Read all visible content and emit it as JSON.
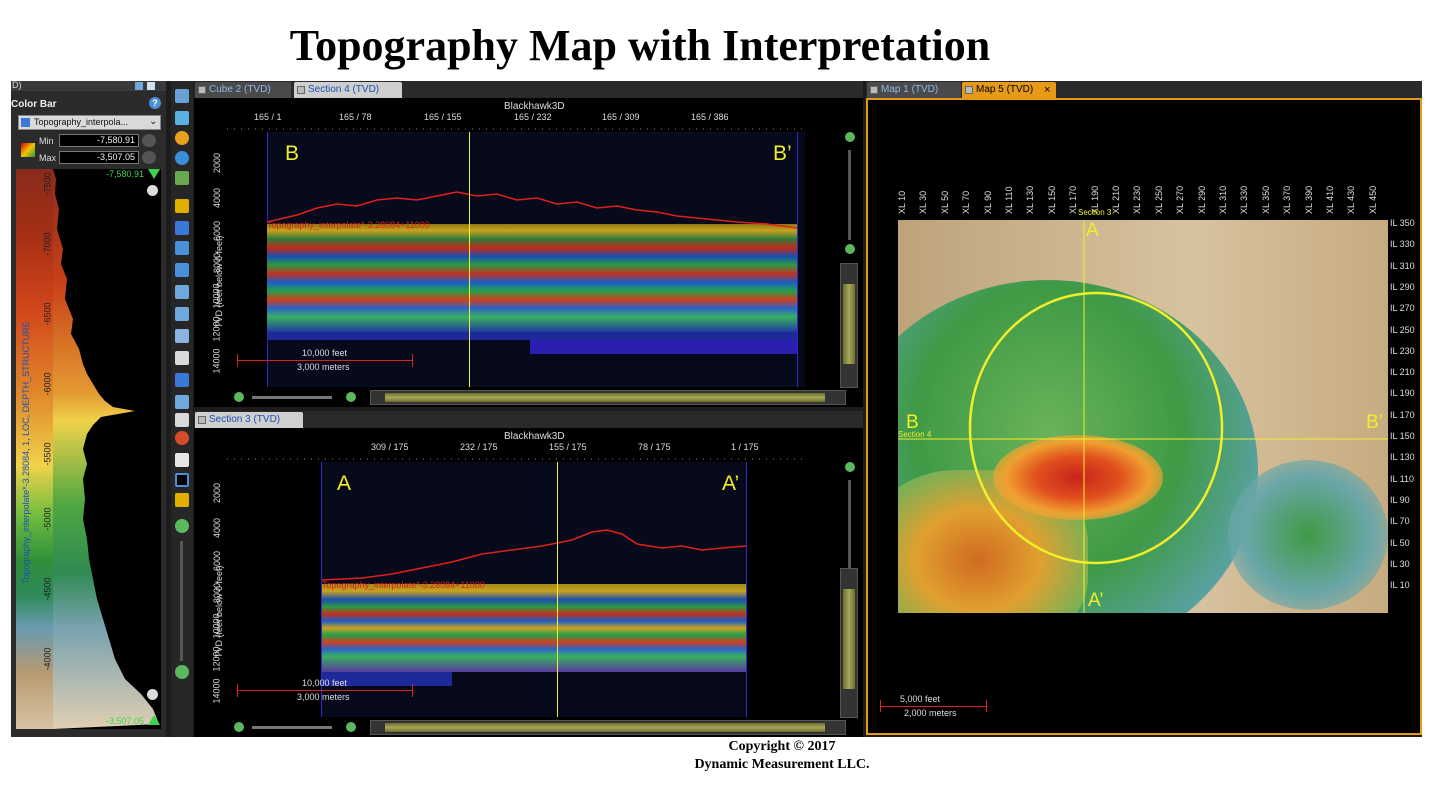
{
  "title": "Topography Map with Interpretation",
  "copyright": {
    "line1": "Copyright  © 2017",
    "line2": "Dynamic Measurement LLC."
  },
  "left_panel": {
    "header_fragment": "D)",
    "title": "Color Bar",
    "help_icon": "help-icon",
    "attribute_select": "Topography_interpola...",
    "min_label": "Min",
    "min_value": "-7,580.91",
    "max_label": "Max",
    "max_value": "-3,507.05",
    "top_value": "-7,580.91",
    "bottom_value": "-3,507.05",
    "axis_title": "Topography_interpolate*-3.28084, 1, LOC, DEPTH_STRUCTURE",
    "ticks": [
      "-7500",
      "-7000",
      "-6500",
      "-6000",
      "-5500",
      "-5000",
      "-4500",
      "-4000"
    ]
  },
  "section_top": {
    "tabs": [
      "Cube 2 (TVD)",
      "Section 4 (TVD)"
    ],
    "survey": "Blackhawk3D",
    "x_ticks": [
      "165 / 1",
      "165 / 78",
      "165 / 155",
      "165 / 232",
      "165 / 309",
      "165 / 386"
    ],
    "y_label": "TVD (feet below 0 feet)",
    "y_ticks": [
      "2000",
      "4000",
      "6000",
      "8000",
      "10000",
      "12000",
      "14000"
    ],
    "left_label": "B",
    "right_label": "B’",
    "horizon_label": "Topography_interpolate*-3.28084+11000",
    "scale_feet": "10,000 feet",
    "scale_meters": "3,000 meters"
  },
  "section_bottom": {
    "tabs": [
      "Section 3 (TVD)"
    ],
    "survey": "Blackhawk3D",
    "x_ticks": [
      "309 / 175",
      "232 / 175",
      "155 / 175",
      "78 / 175",
      "1 / 175"
    ],
    "y_label": "TVD (feet below 0 feet)",
    "y_ticks": [
      "2000",
      "4000",
      "6000",
      "8000",
      "10000",
      "12000",
      "14000"
    ],
    "left_label": "A",
    "right_label": "A’",
    "horizon_label": "Topography_interpolate*-3.28084+11000",
    "scale_feet": "10,000 feet",
    "scale_meters": "3,000 meters"
  },
  "map": {
    "tabs": [
      "Map 1 (TVD)",
      "Map 5 (TVD)"
    ],
    "close_icon": "×",
    "xl_ticks": [
      "XL 10",
      "XL 30",
      "XL 50",
      "XL 70",
      "XL 90",
      "XL 110",
      "XL 130",
      "XL 150",
      "XL 170",
      "XL 190",
      "XL 210",
      "XL 230",
      "XL 250",
      "XL 270",
      "XL 290",
      "XL 310",
      "XL 330",
      "XL 350",
      "XL 370",
      "XL 390",
      "XL 410",
      "XL 430",
      "XL 450"
    ],
    "il_ticks": [
      "IL 350",
      "IL 330",
      "IL 310",
      "IL 290",
      "IL 270",
      "IL 250",
      "IL 230",
      "IL 210",
      "IL 190",
      "IL 170",
      "IL 150",
      "IL 130",
      "IL 110",
      "IL 90",
      "IL 70",
      "IL 50",
      "IL 30",
      "IL 10"
    ],
    "label_a": "A",
    "label_a_prime": "A’",
    "label_b": "B",
    "label_b_prime": "B’",
    "section3_label": "Section 3",
    "section4_label": "Section 4",
    "scale_feet": "5,000 feet",
    "scale_meters": "2,000 meters"
  },
  "colors": {
    "accent_orange": "#e69a17",
    "horizon_red": "#e0201e",
    "interp_yellow": "#f2ee2b",
    "tab_blue": "#1d4fb0"
  }
}
